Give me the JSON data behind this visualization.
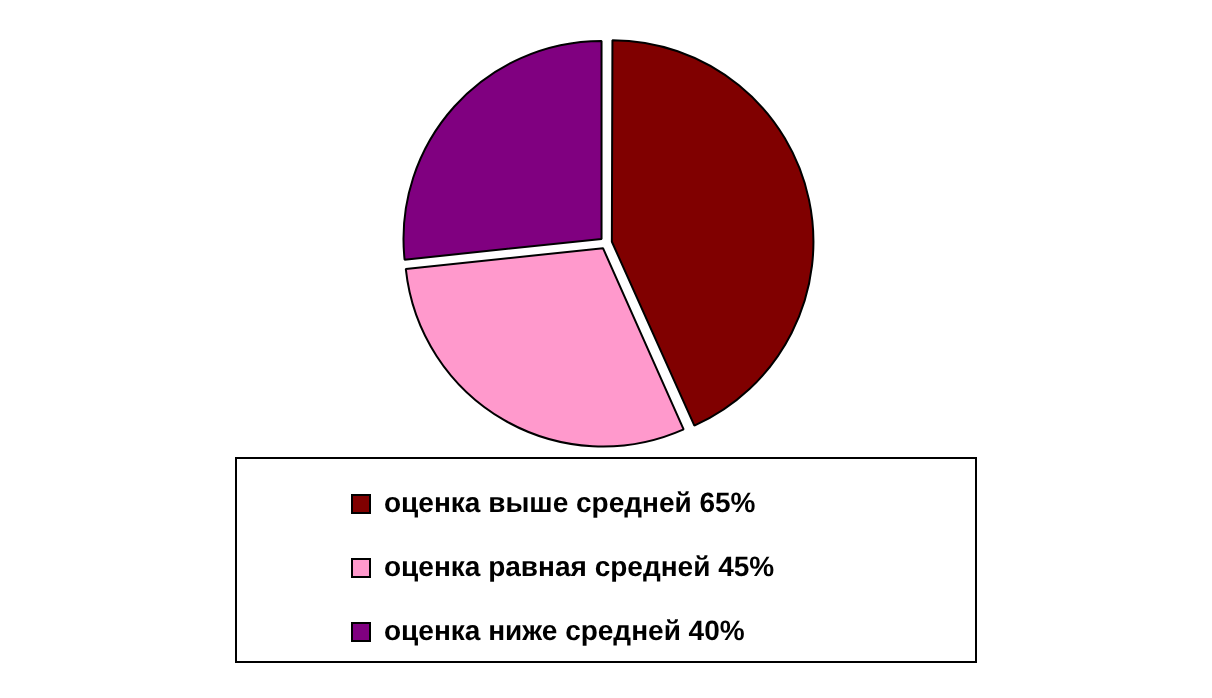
{
  "chart_data": {
    "type": "pie",
    "categories": [
      "оценка выше средней 65%",
      "оценка равная средней 45%",
      "оценка ниже средней 40%"
    ],
    "values": [
      65,
      45,
      40
    ],
    "colors": [
      "#800000",
      "#ff99cc",
      "#800080"
    ],
    "legend": "bottom"
  }
}
